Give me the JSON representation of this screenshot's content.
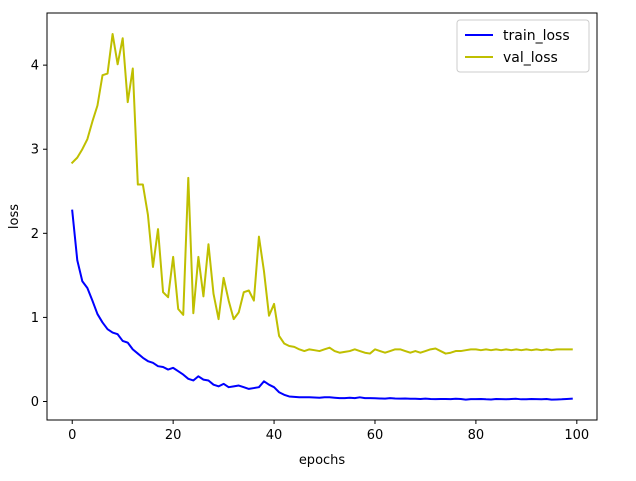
{
  "chart_data": {
    "type": "line",
    "xlabel": "epochs",
    "ylabel": "loss",
    "xlim": [
      -5,
      104
    ],
    "ylim": [
      -0.22,
      4.62
    ],
    "xticks": [
      0,
      20,
      40,
      60,
      80,
      100
    ],
    "yticks": [
      0,
      1,
      2,
      3,
      4
    ],
    "grid": false,
    "legend_position": "top-right",
    "series": [
      {
        "name": "train_loss",
        "color": "#0000ff",
        "x": [
          0,
          1,
          2,
          3,
          4,
          5,
          6,
          7,
          8,
          9,
          10,
          11,
          12,
          13,
          14,
          15,
          16,
          17,
          18,
          19,
          20,
          21,
          22,
          23,
          24,
          25,
          26,
          27,
          28,
          29,
          30,
          31,
          32,
          33,
          34,
          35,
          36,
          37,
          38,
          39,
          40,
          41,
          42,
          43,
          44,
          45,
          46,
          47,
          48,
          49,
          50,
          51,
          52,
          53,
          54,
          55,
          56,
          57,
          58,
          59,
          60,
          61,
          62,
          63,
          64,
          65,
          66,
          67,
          68,
          69,
          70,
          71,
          72,
          73,
          74,
          75,
          76,
          77,
          78,
          79,
          80,
          81,
          82,
          83,
          84,
          85,
          86,
          87,
          88,
          89,
          90,
          91,
          92,
          93,
          94,
          95,
          96,
          97,
          98,
          99
        ],
        "y": [
          2.27,
          1.68,
          1.43,
          1.35,
          1.2,
          1.04,
          0.94,
          0.86,
          0.82,
          0.8,
          0.72,
          0.7,
          0.62,
          0.57,
          0.52,
          0.48,
          0.46,
          0.42,
          0.41,
          0.38,
          0.4,
          0.36,
          0.32,
          0.27,
          0.25,
          0.3,
          0.26,
          0.25,
          0.2,
          0.18,
          0.21,
          0.17,
          0.18,
          0.19,
          0.17,
          0.15,
          0.16,
          0.17,
          0.24,
          0.2,
          0.17,
          0.11,
          0.08,
          0.06,
          0.055,
          0.05,
          0.05,
          0.05,
          0.048,
          0.045,
          0.05,
          0.05,
          0.045,
          0.04,
          0.04,
          0.045,
          0.04,
          0.05,
          0.04,
          0.04,
          0.038,
          0.036,
          0.034,
          0.04,
          0.036,
          0.034,
          0.036,
          0.032,
          0.032,
          0.03,
          0.034,
          0.03,
          0.028,
          0.03,
          0.03,
          0.028,
          0.032,
          0.03,
          0.022,
          0.028,
          0.028,
          0.03,
          0.026,
          0.024,
          0.03,
          0.028,
          0.026,
          0.03,
          0.032,
          0.026,
          0.026,
          0.03,
          0.028,
          0.026,
          0.03,
          0.022,
          0.024,
          0.026,
          0.03,
          0.034
        ]
      },
      {
        "name": "val_loss",
        "color": "#bfbf00",
        "x": [
          0,
          1,
          2,
          3,
          4,
          5,
          6,
          7,
          8,
          9,
          10,
          11,
          12,
          13,
          14,
          15,
          16,
          17,
          18,
          19,
          20,
          21,
          22,
          23,
          24,
          25,
          26,
          27,
          28,
          29,
          30,
          31,
          32,
          33,
          34,
          35,
          36,
          37,
          38,
          39,
          40,
          41,
          42,
          43,
          44,
          45,
          46,
          47,
          48,
          49,
          50,
          51,
          52,
          53,
          54,
          55,
          56,
          57,
          58,
          59,
          60,
          61,
          62,
          63,
          64,
          65,
          66,
          67,
          68,
          69,
          70,
          71,
          72,
          73,
          74,
          75,
          76,
          77,
          78,
          79,
          80,
          81,
          82,
          83,
          84,
          85,
          86,
          87,
          88,
          89,
          90,
          91,
          92,
          93,
          94,
          95,
          96,
          97,
          98,
          99
        ],
        "y": [
          2.84,
          2.9,
          3.0,
          3.12,
          3.33,
          3.52,
          3.88,
          3.9,
          4.37,
          4.01,
          4.32,
          3.56,
          3.96,
          2.58,
          2.58,
          2.22,
          1.6,
          2.05,
          1.3,
          1.24,
          1.72,
          1.1,
          1.03,
          2.66,
          1.05,
          1.72,
          1.25,
          1.87,
          1.28,
          0.98,
          1.47,
          1.2,
          0.98,
          1.06,
          1.3,
          1.32,
          1.2,
          1.96,
          1.55,
          1.02,
          1.16,
          0.78,
          0.69,
          0.66,
          0.65,
          0.62,
          0.6,
          0.62,
          0.61,
          0.6,
          0.62,
          0.64,
          0.6,
          0.58,
          0.59,
          0.6,
          0.62,
          0.6,
          0.58,
          0.57,
          0.62,
          0.6,
          0.58,
          0.6,
          0.62,
          0.62,
          0.6,
          0.58,
          0.6,
          0.58,
          0.6,
          0.62,
          0.63,
          0.6,
          0.57,
          0.58,
          0.6,
          0.6,
          0.61,
          0.62,
          0.62,
          0.61,
          0.62,
          0.61,
          0.62,
          0.61,
          0.62,
          0.61,
          0.62,
          0.61,
          0.62,
          0.61,
          0.62,
          0.61,
          0.62,
          0.61,
          0.62,
          0.62,
          0.62,
          0.62
        ]
      }
    ]
  }
}
